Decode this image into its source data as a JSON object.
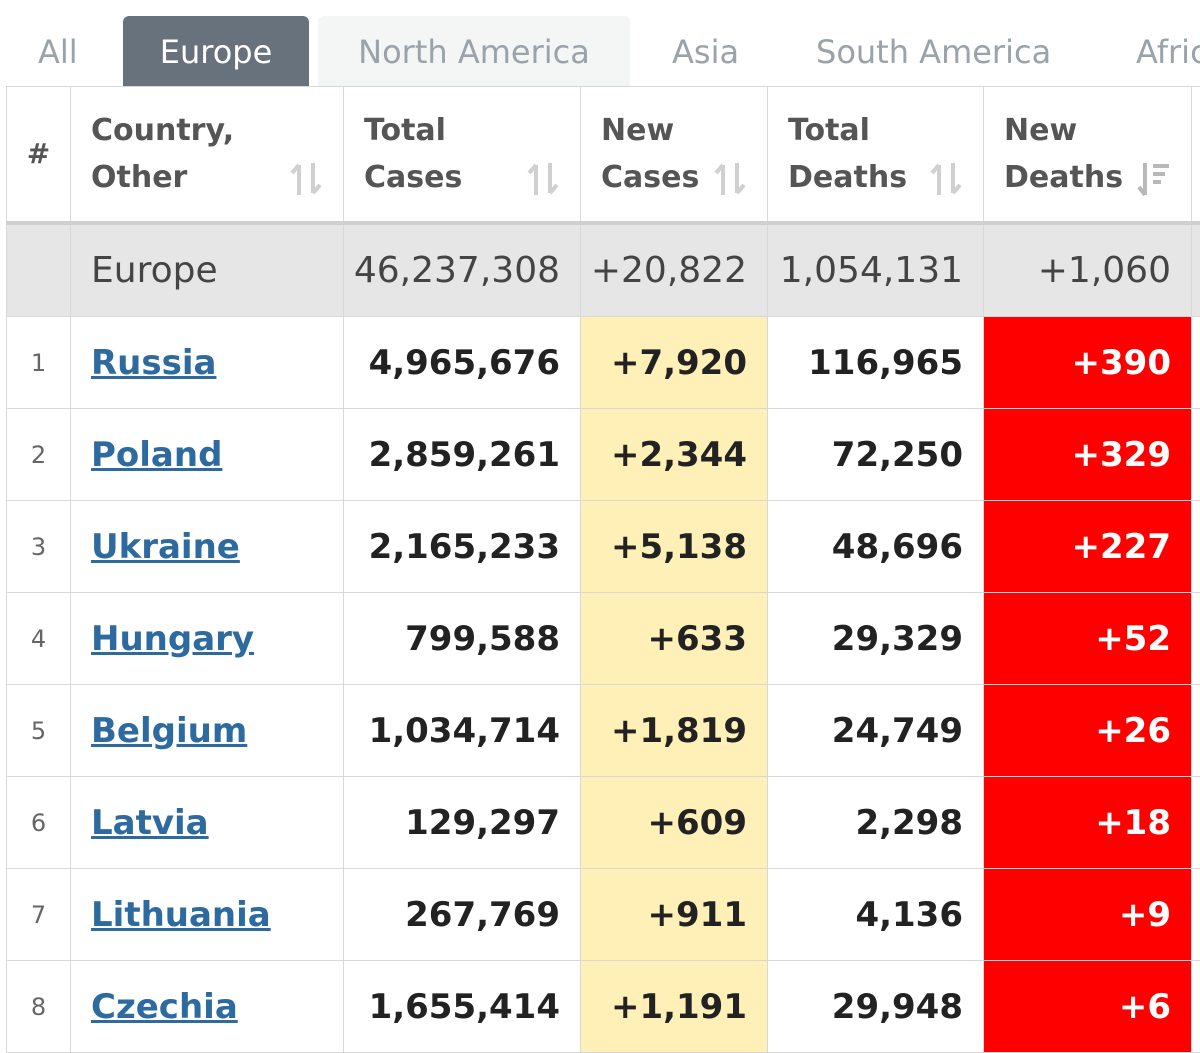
{
  "tabs": [
    {
      "label": "All",
      "state": "normal"
    },
    {
      "label": "Europe",
      "state": "active"
    },
    {
      "label": "North America",
      "state": "ghost"
    },
    {
      "label": "Asia",
      "state": "normal"
    },
    {
      "label": "South America",
      "state": "normal"
    },
    {
      "label": "Afric",
      "state": "normal"
    }
  ],
  "table": {
    "headers": {
      "num": "#",
      "country_line1": "Country,",
      "country_line2": "Other",
      "total_cases_line1": "Total",
      "total_cases_line2": "Cases",
      "new_cases_line1": "New",
      "new_cases_line2": "Cases",
      "total_deaths_line1": "Total",
      "total_deaths_line2": "Deaths",
      "new_deaths_line1": "New",
      "new_deaths_line2": "Deaths"
    },
    "sort_icons": {
      "default": "sort-updown-icon",
      "active": "sort-desc-icon"
    },
    "region": {
      "name": "Europe",
      "total_cases": "46,237,308",
      "new_cases": "+20,822",
      "total_deaths": "1,054,131",
      "new_deaths": "+1,060"
    },
    "rows": [
      {
        "num": "1",
        "country": "Russia",
        "total_cases": "4,965,676",
        "new_cases": "+7,920",
        "total_deaths": "116,965",
        "new_deaths": "+390"
      },
      {
        "num": "2",
        "country": "Poland",
        "total_cases": "2,859,261",
        "new_cases": "+2,344",
        "total_deaths": "72,250",
        "new_deaths": "+329"
      },
      {
        "num": "3",
        "country": "Ukraine",
        "total_cases": "2,165,233",
        "new_cases": "+5,138",
        "total_deaths": "48,696",
        "new_deaths": "+227"
      },
      {
        "num": "4",
        "country": "Hungary",
        "total_cases": "799,588",
        "new_cases": "+633",
        "total_deaths": "29,329",
        "new_deaths": "+52"
      },
      {
        "num": "5",
        "country": "Belgium",
        "total_cases": "1,034,714",
        "new_cases": "+1,819",
        "total_deaths": "24,749",
        "new_deaths": "+26"
      },
      {
        "num": "6",
        "country": "Latvia",
        "total_cases": "129,297",
        "new_cases": "+609",
        "total_deaths": "2,298",
        "new_deaths": "+18"
      },
      {
        "num": "7",
        "country": "Lithuania",
        "total_cases": "267,769",
        "new_cases": "+911",
        "total_deaths": "4,136",
        "new_deaths": "+9"
      },
      {
        "num": "8",
        "country": "Czechia",
        "total_cases": "1,655,414",
        "new_cases": "+1,191",
        "total_deaths": "29,948",
        "new_deaths": "+6"
      }
    ]
  },
  "colors": {
    "active_tab": "#67727c",
    "new_cases_bg": "#fff0b8",
    "new_deaths_bg": "#ff0000",
    "link": "#2c6aa0",
    "region_bg": "#e6e6e6"
  }
}
